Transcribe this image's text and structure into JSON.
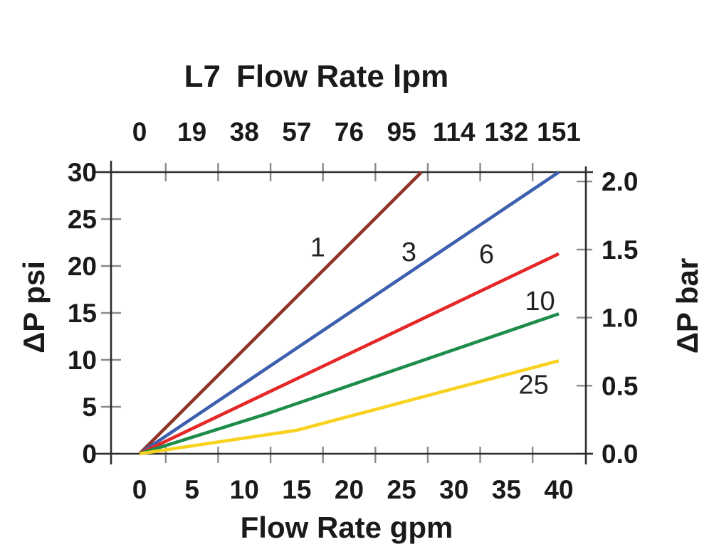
{
  "title": {
    "model": "L7",
    "text": "Flow Rate lpm"
  },
  "colors": {
    "background": "#ffffff",
    "axis": "#2d2d2d",
    "tick": "#8a8a8a",
    "text": "#1a1a1a"
  },
  "chart_data": {
    "type": "line",
    "title": "L7 Flow Rate lpm",
    "grid": false,
    "legend": "inline-curve-labels",
    "top_axis": {
      "label": "Flow Rate lpm",
      "tick_labels": [
        "0",
        "19",
        "38",
        "57",
        "76",
        "95",
        "114",
        "132",
        "151"
      ]
    },
    "x_axis": {
      "label": "Flow Rate gpm",
      "ticks": [
        0,
        5,
        10,
        15,
        20,
        25,
        30,
        35,
        40
      ],
      "range": [
        0,
        40
      ],
      "tick_marks_at_midpoints": true
    },
    "y_axis_left": {
      "label": "ΔP psi",
      "ticks": [
        0,
        5,
        10,
        15,
        20,
        25,
        30
      ],
      "range": [
        0,
        30
      ]
    },
    "y_axis_right": {
      "label": "ΔP bar",
      "tick_labels": [
        "0.0",
        "0.5",
        "1.0",
        "1.5",
        "2.0"
      ],
      "tick_values": [
        0.0,
        0.5,
        1.0,
        1.5,
        2.0
      ],
      "psi_per_bar": 14.5
    },
    "series": [
      {
        "name": "1",
        "color": "#903425",
        "points": [
          [
            0,
            0
          ],
          [
            26.9,
            30
          ]
        ],
        "label_pos": [
          17.0,
          22.0
        ]
      },
      {
        "name": "3",
        "color": "#3c5fae",
        "points": [
          [
            0,
            0
          ],
          [
            40,
            30
          ]
        ],
        "label_pos": [
          25.7,
          21.5
        ]
      },
      {
        "name": "6",
        "color": "#e52728",
        "points": [
          [
            0,
            0
          ],
          [
            40,
            21.3
          ]
        ],
        "label_pos": [
          33.1,
          21.3
        ]
      },
      {
        "name": "10",
        "color": "#1e8c4b",
        "points": [
          [
            0,
            0
          ],
          [
            12,
            4.2
          ],
          [
            40,
            14.9
          ]
        ],
        "label_pos": [
          38.2,
          16.3
        ]
      },
      {
        "name": "25",
        "color": "#f8d21f",
        "points": [
          [
            0,
            0
          ],
          [
            15,
            2.5
          ],
          [
            40,
            9.9
          ]
        ],
        "label_pos": [
          37.6,
          7.4
        ]
      }
    ]
  }
}
